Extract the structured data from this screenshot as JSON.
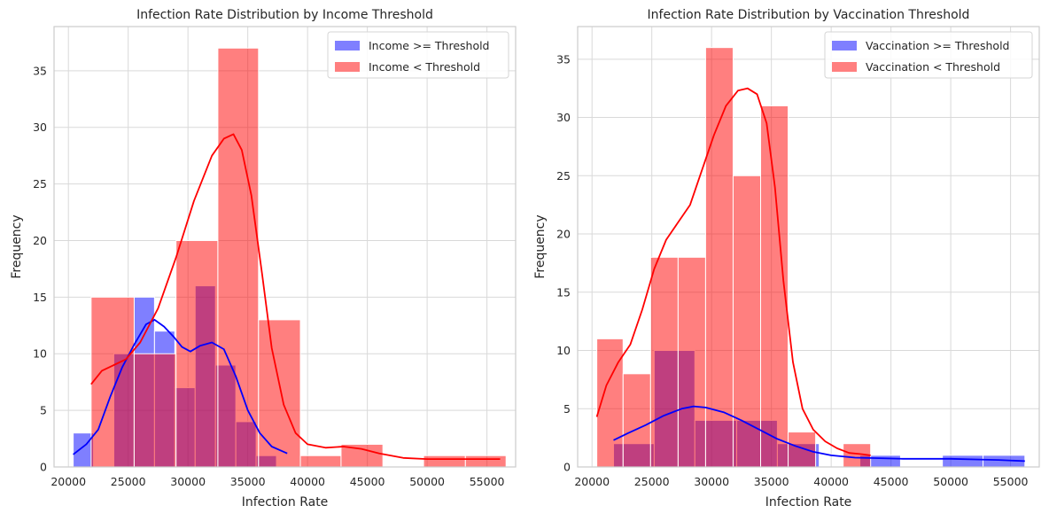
{
  "chart_data": [
    {
      "type": "histogram",
      "title": "Infection Rate Distribution by Income Threshold",
      "xlabel": "Infection Rate",
      "ylabel": "Frequency",
      "xlim": [
        18800,
        57400
      ],
      "ylim": [
        0,
        38.9
      ],
      "xticks": [
        20000,
        25000,
        30000,
        35000,
        40000,
        45000,
        50000,
        55000
      ],
      "yticks": [
        0,
        5,
        10,
        15,
        20,
        25,
        30,
        35
      ],
      "grid": true,
      "legend_position": "top-right",
      "series": [
        {
          "name": "Income >= Threshold",
          "color": "#0000ff",
          "bins": [
            {
              "x0": 20400,
              "x1": 22100,
              "count": 3
            },
            {
              "x0": 22100,
              "x1": 23800,
              "count": 0
            },
            {
              "x0": 23800,
              "x1": 25500,
              "count": 10
            },
            {
              "x0": 25500,
              "x1": 27200,
              "count": 15
            },
            {
              "x0": 27200,
              "x1": 28900,
              "count": 12
            },
            {
              "x0": 28900,
              "x1": 30600,
              "count": 7
            },
            {
              "x0": 30600,
              "x1": 32300,
              "count": 16
            },
            {
              "x0": 32300,
              "x1": 34000,
              "count": 9
            },
            {
              "x0": 34000,
              "x1": 35700,
              "count": 4
            },
            {
              "x0": 35700,
              "x1": 37400,
              "count": 1
            }
          ],
          "kde": [
            [
              20400,
              1.1
            ],
            [
              21500,
              2.0
            ],
            [
              22500,
              3.3
            ],
            [
              23500,
              6.2
            ],
            [
              24500,
              8.8
            ],
            [
              25500,
              10.8
            ],
            [
              26500,
              12.6
            ],
            [
              27200,
              13.0
            ],
            [
              28000,
              12.4
            ],
            [
              28800,
              11.5
            ],
            [
              29500,
              10.6
            ],
            [
              30200,
              10.2
            ],
            [
              31000,
              10.7
            ],
            [
              32000,
              11.0
            ],
            [
              33000,
              10.4
            ],
            [
              34000,
              8.0
            ],
            [
              35000,
              5.0
            ],
            [
              36000,
              3.0
            ],
            [
              37000,
              1.8
            ],
            [
              38300,
              1.2
            ]
          ]
        },
        {
          "name": "Income < Threshold",
          "color": "#ff0000",
          "bins": [
            {
              "x0": 21900,
              "x1": 25500,
              "count": 15
            },
            {
              "x0": 25500,
              "x1": 29000,
              "count": 10
            },
            {
              "x0": 29000,
              "x1": 32500,
              "count": 20
            },
            {
              "x0": 32500,
              "x1": 35900,
              "count": 37
            },
            {
              "x0": 35900,
              "x1": 39400,
              "count": 13
            },
            {
              "x0": 39400,
              "x1": 42800,
              "count": 1
            },
            {
              "x0": 42800,
              "x1": 46300,
              "count": 2
            },
            {
              "x0": 46300,
              "x1": 49700,
              "count": 0
            },
            {
              "x0": 49700,
              "x1": 53200,
              "count": 1
            },
            {
              "x0": 53200,
              "x1": 56600,
              "count": 1
            }
          ],
          "kde": [
            [
              21900,
              7.3
            ],
            [
              22800,
              8.5
            ],
            [
              23800,
              9.0
            ],
            [
              24800,
              9.5
            ],
            [
              26000,
              11.0
            ],
            [
              27500,
              14.0
            ],
            [
              29000,
              18.5
            ],
            [
              30500,
              23.5
            ],
            [
              32000,
              27.5
            ],
            [
              33000,
              29.0
            ],
            [
              33800,
              29.4
            ],
            [
              34500,
              28.0
            ],
            [
              35300,
              24.0
            ],
            [
              36200,
              17.0
            ],
            [
              37000,
              10.5
            ],
            [
              38000,
              5.5
            ],
            [
              39000,
              3.0
            ],
            [
              40000,
              2.0
            ],
            [
              41500,
              1.7
            ],
            [
              43000,
              1.8
            ],
            [
              44500,
              1.6
            ],
            [
              46000,
              1.2
            ],
            [
              48000,
              0.8
            ],
            [
              50000,
              0.7
            ],
            [
              52000,
              0.7
            ],
            [
              54000,
              0.7
            ],
            [
              56100,
              0.7
            ]
          ]
        }
      ]
    },
    {
      "type": "histogram",
      "title": "Infection Rate Distribution by Vaccination Threshold",
      "xlabel": "Infection Rate",
      "ylabel": "Frequency",
      "xlim": [
        18800,
        57400
      ],
      "ylim": [
        0,
        37.8
      ],
      "xticks": [
        20000,
        25000,
        30000,
        35000,
        40000,
        45000,
        50000,
        55000
      ],
      "yticks": [
        0,
        5,
        10,
        15,
        20,
        25,
        30,
        35
      ],
      "grid": true,
      "legend_position": "top-right",
      "series": [
        {
          "name": "Vaccination >= Threshold",
          "color": "#0000ff",
          "bins": [
            {
              "x0": 21800,
              "x1": 25200,
              "count": 2
            },
            {
              "x0": 25200,
              "x1": 28600,
              "count": 10
            },
            {
              "x0": 28600,
              "x1": 32100,
              "count": 4
            },
            {
              "x0": 32100,
              "x1": 35500,
              "count": 4
            },
            {
              "x0": 35500,
              "x1": 39000,
              "count": 2
            },
            {
              "x0": 39000,
              "x1": 42400,
              "count": 0
            },
            {
              "x0": 42400,
              "x1": 45800,
              "count": 1
            },
            {
              "x0": 45800,
              "x1": 49300,
              "count": 0
            },
            {
              "x0": 49300,
              "x1": 52700,
              "count": 1
            },
            {
              "x0": 52700,
              "x1": 56200,
              "count": 1
            }
          ],
          "kde": [
            [
              21800,
              2.3
            ],
            [
              23000,
              2.9
            ],
            [
              24500,
              3.6
            ],
            [
              26000,
              4.4
            ],
            [
              27500,
              5.0
            ],
            [
              28500,
              5.2
            ],
            [
              29500,
              5.1
            ],
            [
              31000,
              4.7
            ],
            [
              32500,
              4.0
            ],
            [
              34000,
              3.2
            ],
            [
              35500,
              2.4
            ],
            [
              37000,
              1.8
            ],
            [
              38500,
              1.3
            ],
            [
              40000,
              1.0
            ],
            [
              42000,
              0.8
            ],
            [
              44000,
              0.75
            ],
            [
              46000,
              0.7
            ],
            [
              48000,
              0.7
            ],
            [
              50000,
              0.7
            ],
            [
              52000,
              0.65
            ],
            [
              54000,
              0.6
            ],
            [
              56200,
              0.5
            ]
          ]
        },
        {
          "name": "Vaccination < Threshold",
          "color": "#ff0000",
          "bins": [
            {
              "x0": 20400,
              "x1": 22600,
              "count": 11
            },
            {
              "x0": 22600,
              "x1": 24900,
              "count": 8
            },
            {
              "x0": 24900,
              "x1": 27200,
              "count": 18
            },
            {
              "x0": 27200,
              "x1": 29500,
              "count": 18
            },
            {
              "x0": 29500,
              "x1": 31800,
              "count": 36
            },
            {
              "x0": 31800,
              "x1": 34100,
              "count": 25
            },
            {
              "x0": 34100,
              "x1": 36400,
              "count": 31
            },
            {
              "x0": 36400,
              "x1": 38700,
              "count": 3
            },
            {
              "x0": 38700,
              "x1": 41000,
              "count": 0
            },
            {
              "x0": 41000,
              "x1": 43300,
              "count": 2
            }
          ],
          "kde": [
            [
              20400,
              4.3
            ],
            [
              21200,
              7.0
            ],
            [
              22200,
              9.0
            ],
            [
              23200,
              10.5
            ],
            [
              24200,
              13.5
            ],
            [
              25200,
              17.0
            ],
            [
              26200,
              19.5
            ],
            [
              27200,
              21.0
            ],
            [
              28200,
              22.5
            ],
            [
              29200,
              25.5
            ],
            [
              30200,
              28.5
            ],
            [
              31200,
              31.0
            ],
            [
              32200,
              32.3
            ],
            [
              33000,
              32.5
            ],
            [
              33800,
              32.0
            ],
            [
              34600,
              29.5
            ],
            [
              35300,
              24.0
            ],
            [
              36000,
              16.0
            ],
            [
              36800,
              9.0
            ],
            [
              37600,
              5.0
            ],
            [
              38500,
              3.2
            ],
            [
              39500,
              2.2
            ],
            [
              40500,
              1.6
            ],
            [
              41500,
              1.2
            ],
            [
              42500,
              1.1
            ],
            [
              43300,
              1.0
            ]
          ]
        }
      ]
    }
  ]
}
